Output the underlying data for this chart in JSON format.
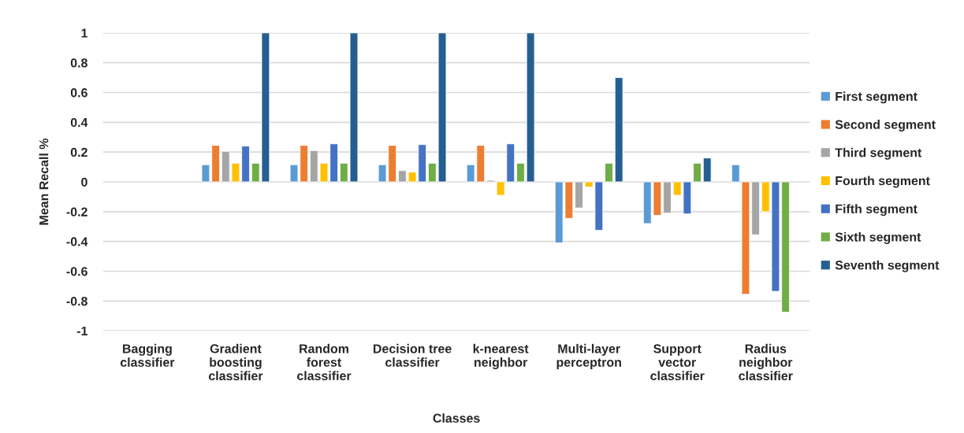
{
  "chart_data": {
    "type": "bar",
    "xlabel": "Classes",
    "ylabel": "Mean Recall %",
    "categories": [
      "Bagging\nclassifier",
      "Gradient\nboosting\nclassifier",
      "Random\nforest\nclassifier",
      "Decision tree\nclassifier",
      "k-nearest\nneighbor",
      "Multi-layer\nperceptron",
      "Support\nvector\nclassifier",
      "Radius\nneighbor\nclassifier"
    ],
    "series": [
      {
        "name": "First segment",
        "color": "#5b9bd5",
        "values": [
          null,
          0.115,
          0.115,
          0.115,
          0.115,
          -0.41,
          -0.28,
          0.115
        ]
      },
      {
        "name": "Second segment",
        "color": "#ed7d31",
        "values": [
          null,
          0.245,
          0.245,
          0.245,
          0.245,
          -0.245,
          -0.225,
          -0.755
        ]
      },
      {
        "name": "Third segment",
        "color": "#a5a5a5",
        "values": [
          null,
          0.205,
          0.21,
          0.075,
          0.01,
          -0.175,
          -0.21,
          -0.355
        ]
      },
      {
        "name": "Fourth segment",
        "color": "#ffc000",
        "values": [
          null,
          0.125,
          0.125,
          0.065,
          -0.09,
          -0.035,
          -0.09,
          -0.2
        ]
      },
      {
        "name": "Fifth segment",
        "color": "#4472c4",
        "values": [
          null,
          0.24,
          0.255,
          0.25,
          0.255,
          -0.325,
          -0.215,
          -0.735
        ]
      },
      {
        "name": "Sixth segment",
        "color": "#70ad47",
        "values": [
          null,
          0.125,
          0.125,
          0.125,
          0.125,
          0.125,
          0.125,
          -0.875
        ]
      },
      {
        "name": "Seventh segment",
        "color": "#255e91",
        "values": [
          null,
          1,
          1,
          1,
          1,
          0.7,
          0.16,
          null
        ]
      }
    ],
    "ylim": [
      -1,
      1
    ],
    "yticks": [
      1,
      0.8,
      0.6,
      0.4,
      0.2,
      0,
      -0.2,
      -0.4,
      -0.6,
      -0.8,
      -1
    ],
    "grid": "y",
    "legend": "right"
  }
}
